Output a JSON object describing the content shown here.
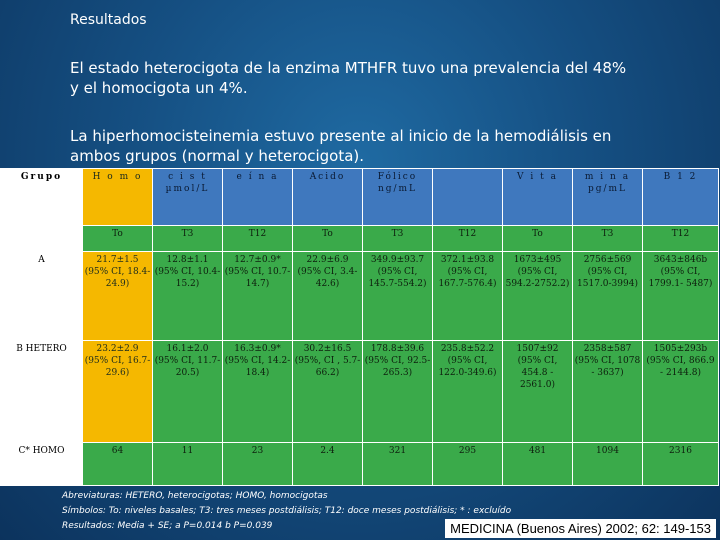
{
  "slide": {
    "title": "Resultados",
    "para1": "El estado heterocigota de la enzima MTHFR tuvo una prevalencia del 48% y el homocigota un 4%.",
    "para2": "La hiperhomocisteinemia estuvo presente al inicio de la hemodiálisis en ambos grupos (normal y heterocigota)."
  },
  "table": {
    "header": {
      "grupo": "Grupo",
      "h1": "H o m o",
      "h2": "c i s t µmol/L",
      "h3": "e í n a",
      "h4": "Acido",
      "h5": "Fólico ng/mL",
      "h6": "",
      "h7": "V i t a",
      "h8": "m i n a pg/mL",
      "h9": "B 1 2"
    },
    "sub": [
      "To",
      "T3",
      "T12",
      "To",
      "T3",
      "T12",
      "To",
      "T3",
      "T12"
    ],
    "rows": [
      {
        "grupo": "A",
        "cells": [
          "21.7±1.5 (95% CI, 18.4-24.9)",
          "12.8±1.1 (95% CI, 10.4-15.2)",
          "12.7±0.9* (95% CI, 10.7-14.7)",
          "22.9±6.9 (95% CI, 3.4-42.6)",
          "349.9±93.7 (95% CI, 145.7-554.2)",
          "372.1±93.8 (95% CI, 167.7-576.4)",
          "1673±495 (95% CI, 594.2-2752.2)",
          "2756±569 (95% CI, 1517.0-3994)",
          "3643±846b (95% CI, 1799.1- 5487)"
        ]
      },
      {
        "grupo": "B HETERO",
        "cells": [
          "23.2±2.9 (95% CI, 16.7-29.6)",
          "16.1±2.0 (95% CI, 11.7-20.5)",
          "16.3±0.9* (95% CI, 14.2-18.4)",
          "30.2±16.5 (95%, CI , 5.7-66.2)",
          "178.8±39.6 (95% CI, 92.5-265.3)",
          "235.8±52.2 (95% CI, 122.0-349.6)",
          "1507±92 (95% CI, 454.8 - 2561.0)",
          "2358±587 (95% CI, 1078 - 3637)",
          "1505±293b (95% CI, 866.9 - 2144.8)"
        ]
      },
      {
        "grupo": "C* HOMO",
        "cells": [
          "64",
          "11",
          "23",
          "2.4",
          "321",
          "295",
          "481",
          "1094",
          "2316"
        ]
      }
    ]
  },
  "notes": {
    "line1": "Abreviaturas: HETERO, heterocigotas; HOMO, homocigotas",
    "line2": "Símbolos: To: niveles basales; T3: tres meses postdiálisis; T12: doce meses postdiálisis; * : excluído",
    "line3": "Resultados: Media + SE; a P=0.014     b P=0.039"
  },
  "source": "MEDICINA (Buenos Aires) 2002; 62: 149-153",
  "colors": {
    "background": "#154f82",
    "yellow": "#f5b800",
    "green": "#3aaa4a",
    "blue": "#3f78be"
  }
}
